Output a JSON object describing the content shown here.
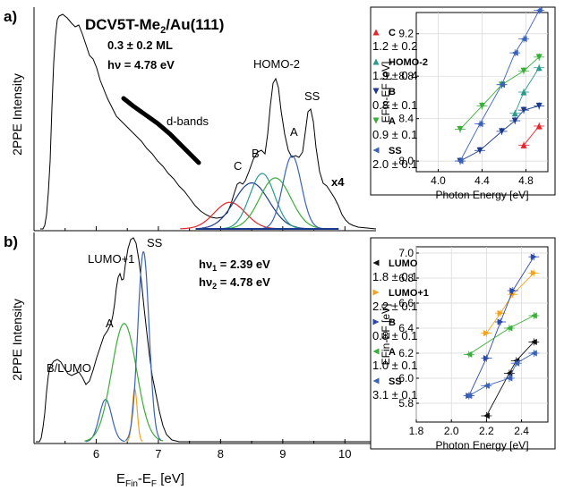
{
  "panel_a": {
    "label": "a)",
    "title_main": "DCV5T-Me",
    "title_sub": "2",
    "title_tail": "/Au(111)",
    "coverage": "0.3 ± 0.2 ML",
    "photon": "hν = 4.78 eV",
    "ylabel": "2PPE Intensity",
    "dbands": "d-bands",
    "x4": "x4",
    "peak_labels": [
      "C",
      "B",
      "HOMO-2",
      "A",
      "SS"
    ]
  },
  "panel_b": {
    "label": "b)",
    "ylabel": "2PPE Intensity",
    "hv1": "hν",
    "hv1_sub": "1",
    "hv1_val": " = 2.39 eV",
    "hv2": "hν",
    "hv2_sub": "2",
    "hv2_val": " = 4.78 eV",
    "peak_labels": [
      "B/LUMO",
      "A",
      "LUMO+1",
      "SS"
    ]
  },
  "x_axis": {
    "label_main": "E",
    "label_sub1": "Fin",
    "label_mid": "-E",
    "label_sub2": "F",
    "label_tail": " [eV]"
  },
  "colors": {
    "C": "#e8232a",
    "HOMO-2": "#2a9a8c",
    "B": "#1b3a8c",
    "A": "#3aae3a",
    "SS": "#3a62b8",
    "LUMO": "#111111",
    "LUMO+1": "#f4a41c",
    "B_b": "#2b4aa8",
    "A_b": "#3aae3a",
    "SS_b": "#3a62b8"
  },
  "chart_data": [
    {
      "type": "line",
      "panel": "a",
      "xlabel": "Efin-EF [eV]",
      "ylabel": "2PPE Intensity",
      "xlim": [
        5.0,
        10.5
      ],
      "xticks": [
        6,
        7,
        8,
        9,
        10
      ],
      "yticks_shown": false,
      "components": [
        {
          "name": "C",
          "center": 8.15,
          "width": 0.25,
          "height": 0.48
        },
        {
          "name": "B",
          "center": 8.5,
          "width": 0.28,
          "height": 0.83
        },
        {
          "name": "HOMO-2",
          "center": 8.67,
          "width": 0.2,
          "height": 1.0
        },
        {
          "name": "A",
          "center": 8.88,
          "width": 0.25,
          "height": 0.92
        },
        {
          "name": "SS",
          "center": 9.15,
          "width": 0.15,
          "height": 1.32
        }
      ]
    },
    {
      "type": "scatter",
      "panel": "a-inset",
      "xlabel": "Photon Energy [eV]",
      "ylabel": "EFin-EF [eV]",
      "xlim": [
        3.8,
        5.0
      ],
      "ylim": [
        7.9,
        9.4
      ],
      "xticks": [
        4.0,
        4.4,
        4.8
      ],
      "yticks": [
        8.0,
        8.4,
        8.8,
        9.2
      ],
      "grid": true,
      "series": [
        {
          "name": "C",
          "slope": "1.2 ± 0.2",
          "marker": "triangle-up",
          "x": [
            4.78,
            4.92
          ],
          "y": [
            8.15,
            8.33
          ]
        },
        {
          "name": "HOMO-2",
          "slope": "1.9 ± 0.4",
          "marker": "triangle-up",
          "x": [
            4.7,
            4.78,
            4.92
          ],
          "y": [
            8.45,
            8.65,
            8.88
          ]
        },
        {
          "name": "B",
          "slope": "0.8 ± 0.1",
          "marker": "triangle-down",
          "x": [
            4.2,
            4.38,
            4.58,
            4.7,
            4.78,
            4.92
          ],
          "y": [
            8.0,
            8.1,
            8.28,
            8.38,
            8.48,
            8.52
          ]
        },
        {
          "name": "A",
          "slope": "0.9 ± 0.1",
          "marker": "triangle-down",
          "x": [
            4.2,
            4.4,
            4.58,
            4.78,
            4.92
          ],
          "y": [
            8.3,
            8.52,
            8.72,
            8.85,
            8.98
          ]
        },
        {
          "name": "SS",
          "slope": "2.0 ± 0.1",
          "marker": "triangle-left",
          "x": [
            4.2,
            4.38,
            4.58,
            4.7,
            4.78,
            4.92
          ],
          "y": [
            8.0,
            8.35,
            8.72,
            9.02,
            9.15,
            9.42
          ]
        }
      ]
    },
    {
      "type": "line",
      "panel": "b",
      "xlabel": "Efin-EF [eV]",
      "ylabel": "2PPE Intensity",
      "xlim": [
        5.0,
        10.5
      ],
      "xticks": [
        6,
        7,
        8,
        9,
        10
      ],
      "components": [
        {
          "name": "B/LUMO",
          "center": 6.15,
          "width": 0.1,
          "height": 0.2
        },
        {
          "name": "A",
          "center": 6.45,
          "width": 0.2,
          "height": 0.56
        },
        {
          "name": "LUMO+1",
          "center": 6.62,
          "width": 0.04,
          "height": 0.25
        },
        {
          "name": "SS",
          "center": 6.76,
          "width": 0.09,
          "height": 0.9
        }
      ]
    },
    {
      "type": "scatter",
      "panel": "b-inset",
      "xlabel": "Photon Energy [eV]",
      "ylabel": "EFin-EF [eV]",
      "xlim": [
        1.8,
        2.55
      ],
      "ylim": [
        5.65,
        7.05
      ],
      "xticks": [
        1.8,
        2.0,
        2.2,
        2.4
      ],
      "yticks": [
        5.8,
        6.0,
        6.2,
        6.4,
        6.6,
        6.8,
        7.0
      ],
      "grid": true,
      "series": [
        {
          "name": "LUMO",
          "slope": "1.8 ± 0.1",
          "marker": "triangle-left",
          "x": [
            2.2,
            2.33,
            2.37,
            2.47
          ],
          "y": [
            5.7,
            6.04,
            6.14,
            6.29
          ]
        },
        {
          "name": "LUMO+1",
          "slope": "2.2 ± 0.1",
          "marker": "triangle-right",
          "x": [
            2.2,
            2.28,
            2.35,
            2.47
          ],
          "y": [
            6.36,
            6.52,
            6.67,
            6.84
          ]
        },
        {
          "name": "B",
          "slope": "0.8 ± 0.1",
          "marker": "triangle-right",
          "x": [
            2.1,
            2.2,
            2.28,
            2.35,
            2.47
          ],
          "y": [
            5.86,
            6.16,
            6.45,
            6.7,
            6.97
          ]
        },
        {
          "name": "A",
          "slope": "1.0 ± 0.1",
          "marker": "triangle-left",
          "x": [
            2.1,
            2.33,
            2.47
          ],
          "y": [
            6.19,
            6.4,
            6.5
          ]
        },
        {
          "name": "SS",
          "slope": "3.1 ± 0.1",
          "marker": "triangle-left",
          "x": [
            2.1,
            2.2,
            2.33,
            2.37,
            2.47
          ],
          "y": [
            5.86,
            5.94,
            6.0,
            6.12,
            6.2
          ]
        }
      ]
    }
  ]
}
